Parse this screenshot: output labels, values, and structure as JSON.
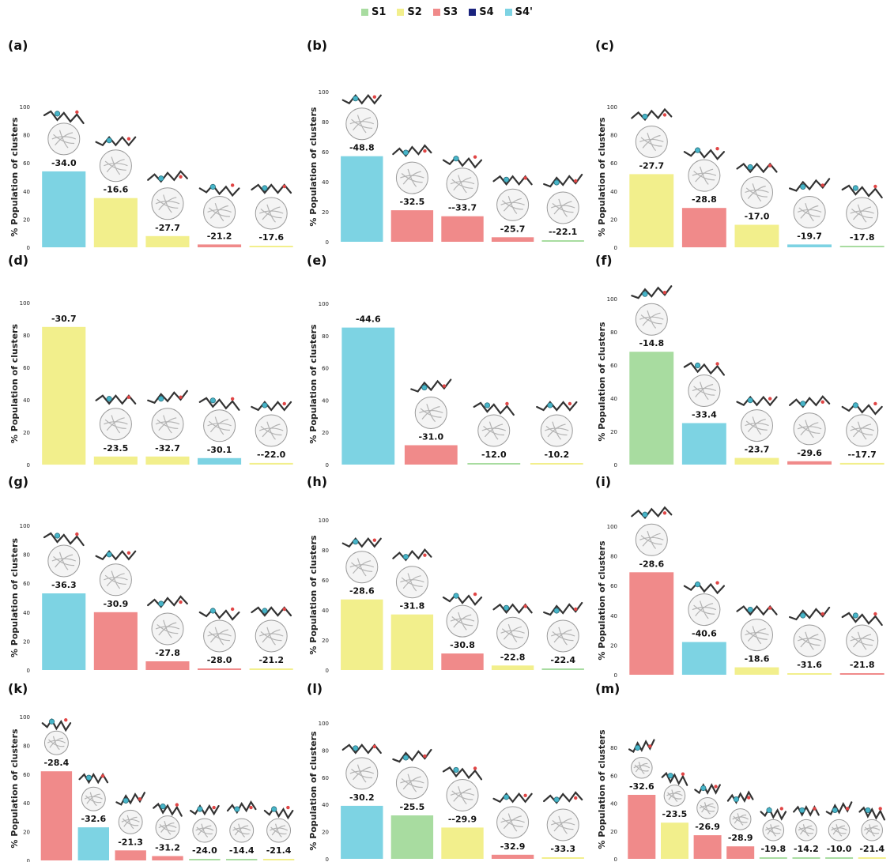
{
  "legend": [
    {
      "label": "S1",
      "color": "#a8dca0"
    },
    {
      "label": "S2",
      "color": "#f2ef8c"
    },
    {
      "label": "S3",
      "color": "#f08a8a"
    },
    {
      "label": "S4",
      "color": "#1a237e"
    },
    {
      "label": "S4'",
      "color": "#7dd3e3"
    }
  ],
  "chart_data": [
    {
      "panel": "(a)",
      "type": "bar",
      "ylabel": "% Population of clusters",
      "ylim": [
        0,
        100
      ],
      "yticks": [
        0,
        20,
        40,
        60,
        80,
        100
      ],
      "values": [
        54,
        35,
        8,
        2,
        1
      ],
      "labels": [
        "-34.0",
        "-16.6",
        "-27.7",
        "-21.2",
        "-17.6"
      ],
      "sites": [
        "S4'",
        "S2",
        "S2",
        "S3",
        "S2"
      ]
    },
    {
      "panel": "(b)",
      "type": "bar",
      "ylabel": "% Population of clusters",
      "ylim": [
        0,
        100
      ],
      "yticks": [
        0,
        20,
        40,
        60,
        80,
        100
      ],
      "values": [
        57,
        21,
        17,
        3,
        1
      ],
      "labels": [
        "-48.8",
        "-32.5",
        "--33.7",
        "-25.7",
        "--22.1"
      ],
      "sites": [
        "S4'",
        "S3",
        "S3",
        "S3",
        "S1"
      ]
    },
    {
      "panel": "(c)",
      "type": "bar",
      "ylabel": "% Population of clusters",
      "ylim": [
        0,
        100
      ],
      "yticks": [
        0,
        20,
        40,
        60,
        80,
        100
      ],
      "values": [
        52,
        28,
        16,
        2,
        1
      ],
      "labels": [
        "-27.7",
        "-28.8",
        "-17.0",
        "-19.7",
        "-17.8"
      ],
      "sites": [
        "S2",
        "S3",
        "S2",
        "S4'",
        "S1"
      ]
    },
    {
      "panel": "(d)",
      "type": "bar",
      "ylabel": "% Population of clusters",
      "ylim": [
        0,
        100
      ],
      "yticks": [
        0,
        20,
        40,
        60,
        80,
        100
      ],
      "values": [
        85,
        5,
        5,
        4,
        1
      ],
      "labels": [
        "-30.7",
        "-23.5",
        "-32.7",
        "-30.1",
        "--22.0"
      ],
      "sites": [
        "S2",
        "S2",
        "S2",
        "S4'",
        "S2"
      ]
    },
    {
      "panel": "(e)",
      "type": "bar",
      "ylabel": "% Population of clusters",
      "ylim": [
        0,
        100
      ],
      "yticks": [
        0,
        20,
        40,
        60,
        80,
        100
      ],
      "values": [
        85,
        12,
        1,
        1
      ],
      "labels": [
        "-44.6",
        "-31.0",
        "-12.0",
        "-10.2"
      ],
      "sites": [
        "S4'",
        "S3",
        "S1",
        "S2"
      ]
    },
    {
      "panel": "(f)",
      "type": "bar",
      "ylabel": "% Population of clusters",
      "ylim": [
        0,
        100
      ],
      "yticks": [
        0,
        20,
        40,
        60,
        80,
        100
      ],
      "values": [
        68,
        25,
        4,
        2,
        1
      ],
      "labels": [
        "-14.8",
        "-33.4",
        "-23.7",
        "-29.6",
        "--17.7"
      ],
      "sites": [
        "S1",
        "S4'",
        "S2",
        "S3",
        "S2"
      ]
    },
    {
      "panel": "(g)",
      "type": "bar",
      "ylabel": "% Population of clusters",
      "ylim": [
        0,
        100
      ],
      "yticks": [
        0,
        20,
        40,
        60,
        80,
        100
      ],
      "values": [
        53,
        40,
        6,
        1,
        1
      ],
      "labels": [
        "-36.3",
        "-30.9",
        "-27.8",
        "-28.0",
        "-21.2"
      ],
      "sites": [
        "S4'",
        "S3",
        "S3",
        "S3",
        "S2"
      ]
    },
    {
      "panel": "(h)",
      "type": "bar",
      "ylabel": "% Population of clusters",
      "ylim": [
        0,
        100
      ],
      "yticks": [
        0,
        20,
        40,
        60,
        80,
        100
      ],
      "values": [
        47,
        37,
        11,
        3,
        1
      ],
      "labels": [
        "-28.6",
        "-31.8",
        "-30.8",
        "-22.8",
        "-22.4"
      ],
      "sites": [
        "S2",
        "S2",
        "S3",
        "S2",
        "S1"
      ]
    },
    {
      "panel": "(i)",
      "type": "bar",
      "ylabel": "% Population of clusters",
      "ylim": [
        0,
        100
      ],
      "yticks": [
        0,
        20,
        40,
        60,
        80,
        100
      ],
      "values": [
        69,
        22,
        5,
        1,
        1
      ],
      "labels": [
        "-28.6",
        "-40.6",
        "-18.6",
        "-31.6",
        "-21.8"
      ],
      "sites": [
        "S3",
        "S4'",
        "S2",
        "S2",
        "S3"
      ]
    },
    {
      "panel": "(k)",
      "type": "bar",
      "ylabel": "% Population of clusters",
      "ylim": [
        0,
        100
      ],
      "yticks": [
        0,
        20,
        40,
        60,
        80,
        100
      ],
      "values": [
        62,
        23,
        7,
        3,
        1,
        1,
        1
      ],
      "labels": [
        "-28.4",
        "-32.6",
        "-21.3",
        "-31.2",
        "-24.0",
        "-14.4",
        "-21.4"
      ],
      "sites": [
        "S3",
        "S4'",
        "S3",
        "S3",
        "S1",
        "S1",
        "S2"
      ]
    },
    {
      "panel": "(l)",
      "type": "bar",
      "ylabel": "% Population of clusters",
      "ylim": [
        0,
        100
      ],
      "yticks": [
        0,
        20,
        40,
        60,
        80,
        100
      ],
      "values": [
        39,
        32,
        23,
        3,
        1
      ],
      "labels": [
        "-30.2",
        "-25.5",
        "--29.9",
        "-32.9",
        "-33.3"
      ],
      "sites": [
        "S4'",
        "S1",
        "S2",
        "S3",
        "S2"
      ]
    },
    {
      "panel": "(m)",
      "type": "bar",
      "ylabel": "% Population of clusters",
      "ylim": [
        0,
        100
      ],
      "yticks": [
        0,
        20,
        40,
        60,
        80
      ],
      "values": [
        46,
        26,
        17,
        9,
        1,
        1,
        1,
        1
      ],
      "labels": [
        "-32.6",
        "-23.5",
        "-26.9",
        "-28.9",
        "-19.8",
        "-14.2",
        "-10.0",
        "-21.4"
      ],
      "sites": [
        "S3",
        "S2",
        "S3",
        "S3",
        "S1",
        "S1",
        "S1",
        "S2"
      ]
    }
  ]
}
